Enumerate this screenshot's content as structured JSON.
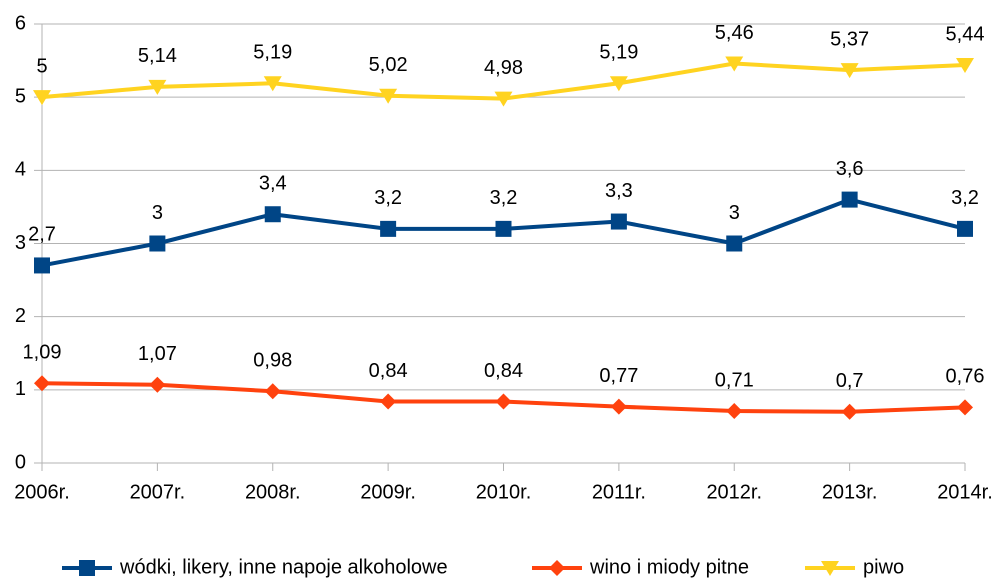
{
  "chart_data": {
    "type": "line",
    "categories": [
      "2006r.",
      "2007r.",
      "2008r.",
      "2009r.",
      "2010r.",
      "2011r.",
      "2012r.",
      "2013r.",
      "2014r."
    ],
    "series": [
      {
        "name": "wódki, likery, inne napoje alkoholowe",
        "color": "#004586",
        "marker": "square",
        "values": [
          2.7,
          3,
          3.4,
          3.2,
          3.2,
          3.3,
          3,
          3.6,
          3.2
        ],
        "value_labels": [
          "2,7",
          "3",
          "3,4",
          "3,2",
          "3,2",
          "3,3",
          "3",
          "3,6",
          "3,2"
        ]
      },
      {
        "name": "wino i miody pitne",
        "color": "#ff420e",
        "marker": "diamond",
        "values": [
          1.09,
          1.07,
          0.98,
          0.84,
          0.84,
          0.77,
          0.71,
          0.7,
          0.76
        ],
        "value_labels": [
          "1,09",
          "1,07",
          "0,98",
          "0,84",
          "0,84",
          "0,77",
          "0,71",
          "0,7",
          "0,76"
        ]
      },
      {
        "name": "piwo",
        "color": "#ffd320",
        "marker": "triangle-down",
        "values": [
          5,
          5.14,
          5.19,
          5.02,
          4.98,
          5.19,
          5.46,
          5.37,
          5.44
        ],
        "value_labels": [
          "5",
          "5,14",
          "5,19",
          "5,02",
          "4,98",
          "5,19",
          "5,46",
          "5,37",
          "5,44"
        ]
      }
    ],
    "ylim": [
      0,
      6
    ],
    "yticks": [
      0,
      1,
      2,
      3,
      4,
      5,
      6
    ],
    "grid": true,
    "legend": "bottom"
  }
}
